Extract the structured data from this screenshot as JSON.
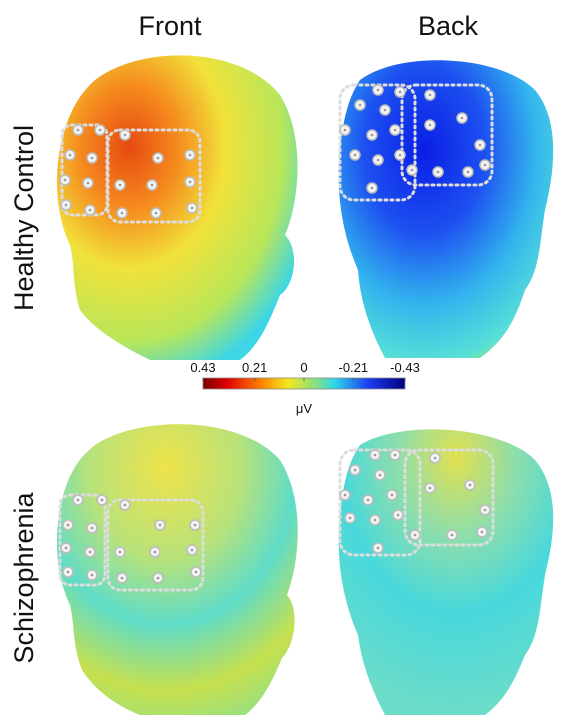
{
  "columns": [
    "Front",
    "Back"
  ],
  "rows": [
    "Healthy Control",
    "Schizophrenia"
  ],
  "colorbar": {
    "range": [
      0.43,
      -0.43
    ],
    "ticks": [
      0.43,
      0.21,
      0,
      -0.21,
      -0.43
    ],
    "label": "μV"
  }
}
